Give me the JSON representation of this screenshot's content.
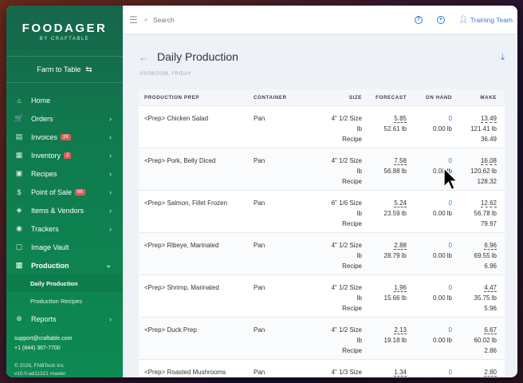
{
  "sidebar": {
    "logo_name": "FOODAGER",
    "logo_sub": "BY CRAFTABLE",
    "location": "Farm to Table",
    "items": [
      {
        "label": "Home",
        "icon": "home-icon",
        "glyph": "⌂",
        "chevron": false
      },
      {
        "label": "Orders",
        "icon": "cart-icon",
        "glyph": "🛒",
        "chevron": true
      },
      {
        "label": "Invoices",
        "icon": "invoice-icon",
        "glyph": "▤",
        "chevron": true,
        "badge": "26"
      },
      {
        "label": "Inventory",
        "icon": "inventory-icon",
        "glyph": "▦",
        "chevron": true,
        "badge": "2"
      },
      {
        "label": "Recipes",
        "icon": "recipe-book-icon",
        "glyph": "▣",
        "chevron": true
      },
      {
        "label": "Point of Sale",
        "icon": "dollar-icon",
        "glyph": "$",
        "chevron": true,
        "badge": "68"
      },
      {
        "label": "Items & Vendors",
        "icon": "tag-icon",
        "glyph": "◈",
        "chevron": true
      },
      {
        "label": "Trackers",
        "icon": "location-pin-icon",
        "glyph": "◉",
        "chevron": true
      },
      {
        "label": "Image Vault",
        "icon": "image-icon",
        "glyph": "▢",
        "chevron": false
      }
    ],
    "production": {
      "label": "Production",
      "sub": [
        "Daily Production",
        "Production Recipes"
      ]
    },
    "reports": {
      "label": "Reports"
    },
    "support_email": "support@craftable.com",
    "support_phone": "+1 (844) 367-7700",
    "copy1": "© 2026, FNBTech Inc.",
    "copy2": "v10.0-ad11321 master"
  },
  "topbar": {
    "search_placeholder": "Search",
    "user": "Training Team"
  },
  "page": {
    "title": "Daily Production",
    "date": "03/09/2026, FRIDAY"
  },
  "table": {
    "headers": [
      "PRODUCTION PREP",
      "CONTAINER",
      "SIZE",
      "FORECAST",
      "ON HAND",
      "MAKE"
    ],
    "rows": [
      {
        "prep": "<Prep> Chicken Salad",
        "container": "Pan",
        "size1": "4\" 1/2 Size",
        "size2": "lb",
        "size3": "Recipe",
        "f1": "5.85",
        "f2": "52.61 lb",
        "o1": "0",
        "o2": "0.00 lb",
        "m1": "13.49",
        "m2": "121.41 lb",
        "m3": "36.49"
      },
      {
        "prep": "<Prep> Pork, Belly Diced",
        "container": "Pan",
        "size1": "4\" 1/2 Size",
        "size2": "lb",
        "size3": "Recipe",
        "f1": "7.58",
        "f2": "56.88 lb",
        "o1": "0",
        "o2": "0.00 lb",
        "m1": "16.08",
        "m2": "120.62 lb",
        "m3": "128.32"
      },
      {
        "prep": "<Prep> Salmon, Fillet Frozen",
        "container": "Pan",
        "size1": "6\" 1/6 Size",
        "size2": "lb",
        "size3": "Recipe",
        "f1": "5.24",
        "f2": "23.59 lb",
        "o1": "0",
        "o2": "0.00 lb",
        "m1": "12.62",
        "m2": "56.78 lb",
        "m3": "79.97"
      },
      {
        "prep": "<Prep> Ribeye, Marinated",
        "container": "Pan",
        "size1": "4\" 1/2 Size",
        "size2": "lb",
        "size3": "Recipe",
        "f1": "2.88",
        "f2": "28.79 lb",
        "o1": "0",
        "o2": "0.00 lb",
        "m1": "6.96",
        "m2": "69.55 lb",
        "m3": "6.96"
      },
      {
        "prep": "<Prep> Shrimp, Marinated",
        "container": "Pan",
        "size1": "4\" 1/2 Size",
        "size2": "lb",
        "size3": "Recipe",
        "f1": "1.96",
        "f2": "15.66 lb",
        "o1": "0",
        "o2": "0.00 lb",
        "m1": "4.47",
        "m2": "35.75 lb",
        "m3": "5.96"
      },
      {
        "prep": "<Prep> Duck Prep",
        "container": "Pan",
        "size1": "4\" 1/2 Size",
        "size2": "lb",
        "size3": "Recipe",
        "f1": "2.13",
        "f2": "19.18 lb",
        "o1": "0",
        "o2": "0.00 lb",
        "m1": "6.67",
        "m2": "60.02 lb",
        "m3": "2.86"
      },
      {
        "prep": "<Prep> Roasted Mushrooms",
        "container": "Pan",
        "size1": "4\" 1/3 Size",
        "size2": "",
        "size3": "",
        "f1": "1.34",
        "f2": "",
        "o1": "0",
        "o2": "",
        "m1": "2.80",
        "m2": "",
        "m3": ""
      }
    ]
  }
}
